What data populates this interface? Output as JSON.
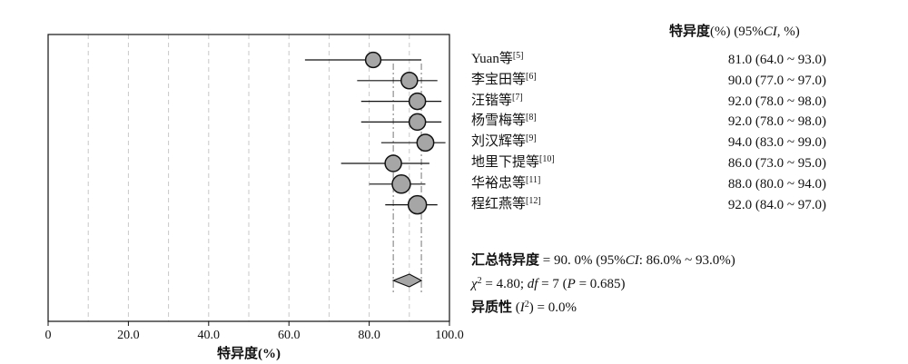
{
  "chart_data": {
    "type": "forest",
    "xlabel": "特异度(%)",
    "xlim": [
      0,
      100
    ],
    "xticks": [
      "0",
      "20.0",
      "40.0",
      "60.0",
      "80.0",
      "100.0"
    ],
    "grid": "dashed vertical every 10",
    "column_header": {
      "bold": "特异度",
      "rest": "(%)  (95%",
      "ci_it": "CI",
      "tail": ", %)"
    },
    "studies": [
      {
        "name": "Yuan等",
        "ref": "[5]",
        "est": 81.0,
        "lo": 64.0,
        "hi": 93.0,
        "weight": 0.6,
        "text": "81.0  (64.0 ~ 93.0)"
      },
      {
        "name": "李宝田等",
        "ref": "[6]",
        "est": 90.0,
        "lo": 77.0,
        "hi": 97.0,
        "weight": 0.75,
        "text": "90.0  (77.0 ~ 97.0)"
      },
      {
        "name": "汪锴等",
        "ref": "[7]",
        "est": 92.0,
        "lo": 78.0,
        "hi": 98.0,
        "weight": 0.75,
        "text": "92.0  (78.0 ~ 98.0)"
      },
      {
        "name": "杨雪梅等",
        "ref": "[8]",
        "est": 92.0,
        "lo": 78.0,
        "hi": 98.0,
        "weight": 0.75,
        "text": "92.0  (78.0 ~ 98.0)"
      },
      {
        "name": "刘汉辉等",
        "ref": "[9]",
        "est": 94.0,
        "lo": 83.0,
        "hi": 99.0,
        "weight": 0.8,
        "text": "94.0  (83.0 ~ 99.0)"
      },
      {
        "name": "地里下提等",
        "ref": "[10]",
        "est": 86.0,
        "lo": 73.0,
        "hi": 95.0,
        "weight": 0.75,
        "text": "86.0  (73.0 ~ 95.0)"
      },
      {
        "name": "华裕忠等",
        "ref": "[11]",
        "est": 88.0,
        "lo": 80.0,
        "hi": 94.0,
        "weight": 1.0,
        "text": "88.0  (80.0 ~ 94.0)"
      },
      {
        "name": "程红燕等",
        "ref": "[12]",
        "est": 92.0,
        "lo": 84.0,
        "hi": 97.0,
        "weight": 1.0,
        "text": "92.0  (84.0 ~ 97.0)"
      }
    ],
    "pooled": {
      "est": 90.0,
      "lo": 86.0,
      "hi": 93.0
    },
    "summary": {
      "label": "汇总特异度",
      "value": " = 90. 0%  (95%",
      "ci_it": "CI",
      "ci_tail": ":  86.0% ~ 93.0%)",
      "chi_sym": "χ",
      "chi_eq": " = 4.80;  ",
      "df_it": "df",
      "df_eq": " = 7  (",
      "p_it": "P",
      "p_eq": " = 0.685)",
      "het_label": "异质性",
      "het_open": "  (",
      "i_it": "I",
      "het_tail": ") = 0.0%"
    },
    "colors": {
      "marker_fill": "#a6a6a6",
      "line": "#111111",
      "grid": "#c8c8c8"
    }
  }
}
